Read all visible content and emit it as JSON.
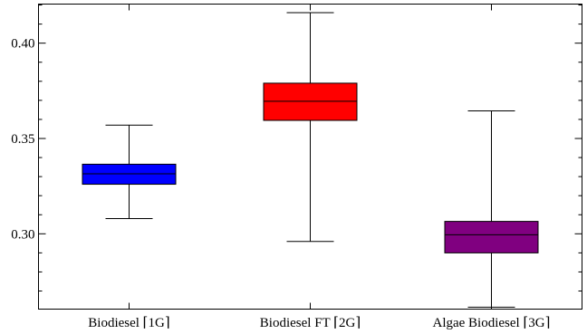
{
  "chart_data": {
    "type": "box",
    "title": "",
    "xlabel": "",
    "ylabel": "",
    "ylim": [
      0.2605,
      0.4205
    ],
    "yticks": [
      0.3,
      0.35,
      0.4
    ],
    "ytick_labels": [
      "0.30",
      "0.35",
      "0.40"
    ],
    "grid": false,
    "categories": [
      "Biodiesel ⌈1G⌉",
      "Biodiesel FT ⌈2G⌉",
      "Algae Biodiesel ⌈3G⌉"
    ],
    "series": [
      {
        "min": 0.308,
        "q1": 0.326,
        "median": 0.3315,
        "q3": 0.3365,
        "max": 0.357,
        "color": "#0000ff"
      },
      {
        "min": 0.296,
        "q1": 0.3595,
        "median": 0.3695,
        "q3": 0.379,
        "max": 0.416,
        "color": "#ff0000"
      },
      {
        "min": 0.2615,
        "q1": 0.29,
        "median": 0.2995,
        "q3": 0.3065,
        "max": 0.3645,
        "color": "#800080"
      }
    ]
  }
}
